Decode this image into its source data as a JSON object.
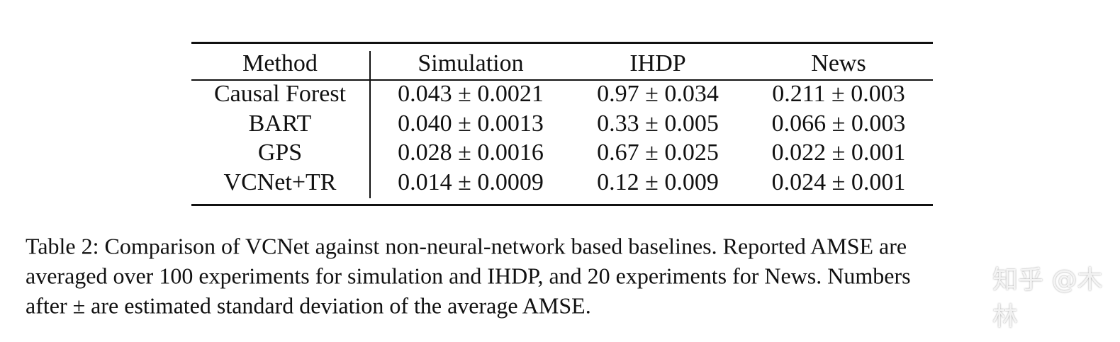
{
  "table": {
    "header": [
      "Method",
      "Simulation",
      "IHDP",
      "News"
    ],
    "rows": [
      [
        "Causal Forest",
        "0.043 ± 0.0021",
        "0.97 ± 0.034",
        "0.211 ± 0.003"
      ],
      [
        "BART",
        "0.040 ± 0.0013",
        "0.33 ± 0.005",
        "0.066 ± 0.003"
      ],
      [
        "GPS",
        "0.028 ± 0.0016",
        "0.67 ± 0.025",
        "0.022 ± 0.001"
      ],
      [
        "VCNet+TR",
        "0.014 ± 0.0009",
        "0.12 ± 0.009",
        "0.024 ± 0.001"
      ]
    ]
  },
  "caption": {
    "lines": [
      "Table 2: Comparison of VCNet against non-neural-network based baselines. Reported AMSE are",
      "averaged over 100 experiments for simulation and IHDP, and 20 experiments for News. Numbers",
      "after ± are estimated standard deviation of the average AMSE."
    ]
  },
  "watermark": "知乎 @木林"
}
